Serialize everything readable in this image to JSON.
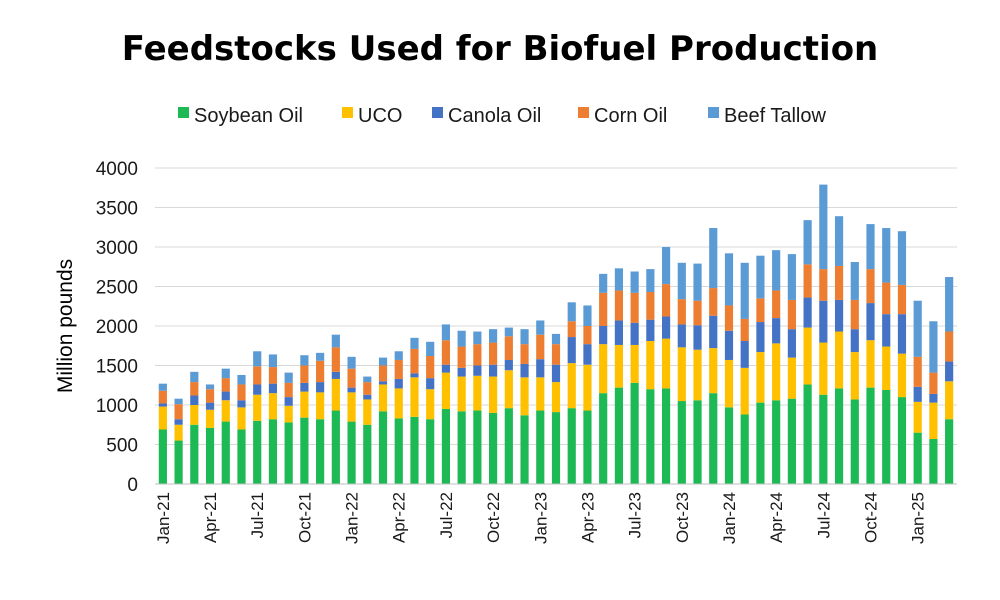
{
  "chart_data": {
    "type": "bar",
    "stacked": true,
    "title": "Feedstocks Used for Biofuel Production",
    "ylabel": "Million pounds",
    "ylim": [
      0,
      4000
    ],
    "yticks": [
      0,
      500,
      1000,
      1500,
      2000,
      2500,
      3000,
      3500,
      4000
    ],
    "grid": "horizontal",
    "legend_position": "top",
    "categories": [
      "Jan-21",
      "Feb-21",
      "Mar-21",
      "Apr-21",
      "May-21",
      "Jun-21",
      "Jul-21",
      "Aug-21",
      "Sep-21",
      "Oct-21",
      "Nov-21",
      "Dec-21",
      "Jan-22",
      "Feb-22",
      "Mar-22",
      "Apr-22",
      "May-22",
      "Jun-22",
      "Jul-22",
      "Aug-22",
      "Sep-22",
      "Oct-22",
      "Nov-22",
      "Dec-22",
      "Jan-23",
      "Feb-23",
      "Mar-23",
      "Apr-23",
      "May-23",
      "Jun-23",
      "Jul-23",
      "Aug-23",
      "Sep-23",
      "Oct-23",
      "Nov-23",
      "Dec-23",
      "Jan-24",
      "Feb-24",
      "Mar-24",
      "Apr-24",
      "May-24",
      "Jun-24",
      "Jul-24",
      "Aug-24",
      "Sep-24",
      "Oct-24",
      "Nov-24",
      "Dec-24",
      "Jan-25",
      "Feb-25",
      "Mar-25"
    ],
    "xtick_labels": [
      "Jan-21",
      "Apr-21",
      "Jul-21",
      "Oct-21",
      "Jan-22",
      "Apr-22",
      "Jul-22",
      "Oct-22",
      "Jan-23",
      "Apr-23",
      "Jul-23",
      "Oct-23",
      "Jan-24",
      "Apr-24",
      "Jul-24",
      "Oct-24",
      "Jan-25"
    ],
    "series": [
      {
        "name": "Soybean Oil",
        "color": "#1db954",
        "values": [
          690,
          550,
          750,
          710,
          790,
          690,
          800,
          820,
          780,
          840,
          820,
          930,
          790,
          750,
          920,
          830,
          850,
          820,
          950,
          920,
          930,
          900,
          960,
          870,
          930,
          910,
          960,
          930,
          1150,
          1220,
          1280,
          1200,
          1210,
          1050,
          1060,
          1150,
          970,
          880,
          1030,
          1060,
          1080,
          1260,
          1130,
          1210,
          1070,
          1220,
          1190,
          1100,
          650,
          570,
          820
        ]
      },
      {
        "name": "UCO",
        "color": "#ffc000",
        "values": [
          290,
          200,
          250,
          230,
          270,
          280,
          330,
          330,
          210,
          330,
          340,
          400,
          370,
          320,
          340,
          380,
          500,
          380,
          460,
          440,
          440,
          460,
          480,
          480,
          420,
          380,
          570,
          580,
          620,
          540,
          480,
          610,
          630,
          680,
          640,
          570,
          600,
          590,
          640,
          720,
          520,
          720,
          660,
          720,
          600,
          600,
          550,
          550,
          390,
          460,
          480
        ]
      },
      {
        "name": "Canola Oil",
        "color": "#4472c4",
        "values": [
          40,
          70,
          120,
          90,
          110,
          90,
          130,
          120,
          110,
          110,
          130,
          90,
          60,
          60,
          40,
          120,
          50,
          140,
          100,
          110,
          130,
          150,
          130,
          170,
          230,
          220,
          330,
          260,
          230,
          310,
          280,
          270,
          280,
          290,
          310,
          410,
          370,
          340,
          380,
          320,
          360,
          380,
          530,
          400,
          290,
          470,
          410,
          500,
          190,
          110,
          250
        ]
      },
      {
        "name": "Corn Oil",
        "color": "#ed7d31",
        "values": [
          160,
          190,
          170,
          170,
          170,
          200,
          230,
          210,
          180,
          220,
          270,
          310,
          240,
          160,
          200,
          240,
          310,
          280,
          310,
          270,
          270,
          280,
          300,
          250,
          310,
          260,
          200,
          230,
          420,
          380,
          380,
          350,
          410,
          320,
          310,
          350,
          320,
          280,
          300,
          350,
          370,
          420,
          400,
          430,
          370,
          430,
          400,
          370,
          380,
          270,
          380
        ]
      },
      {
        "name": "Beef Tallow",
        "color": "#5b9bd5",
        "values": [
          90,
          70,
          130,
          60,
          120,
          120,
          190,
          160,
          130,
          130,
          100,
          160,
          150,
          70,
          100,
          110,
          140,
          180,
          200,
          200,
          160,
          170,
          110,
          190,
          180,
          130,
          240,
          260,
          240,
          280,
          270,
          290,
          470,
          460,
          470,
          760,
          660,
          710,
          540,
          510,
          580,
          560,
          1070,
          630,
          480,
          570,
          690,
          680,
          710,
          650,
          690
        ]
      }
    ]
  }
}
